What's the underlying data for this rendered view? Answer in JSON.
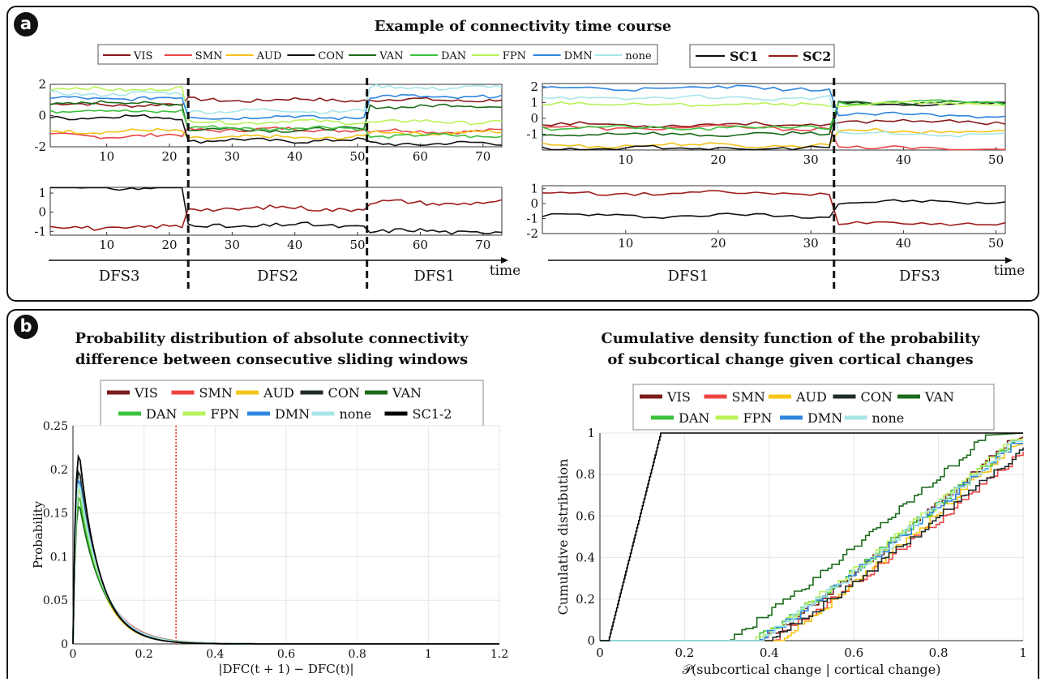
{
  "panel_a": {
    "badge": "a",
    "title": "Example of connectivity time course",
    "legend_networks": [
      {
        "label": "VIS",
        "color": "#8b1a1a"
      },
      {
        "label": "SMN",
        "color": "#e8474b"
      },
      {
        "label": "AUD",
        "color": "#f2c31b"
      },
      {
        "label": "CON",
        "color": "#111111"
      },
      {
        "label": "VAN",
        "color": "#1b6b1b"
      },
      {
        "label": "DAN",
        "color": "#3cc13c"
      },
      {
        "label": "FPN",
        "color": "#b9f25a"
      },
      {
        "label": "DMN",
        "color": "#2f86e0"
      },
      {
        "label": "none",
        "color": "#a8e6e9"
      }
    ],
    "legend_sc": [
      {
        "label": "SC1",
        "color": "#111111"
      },
      {
        "label": "SC2",
        "color": "#a01c1c"
      }
    ],
    "time_label": "time",
    "left_states": [
      "DFS3",
      "DFS2",
      "DFS1"
    ],
    "right_states": [
      "DFS1",
      "DFS3"
    ]
  },
  "panel_b": {
    "badge": "b",
    "left_title": "Probability distribution of absolute connectivity\ndifference between consecutive sliding windows",
    "right_title": "Cumulative density function of the probability\nof subcortical change given cortical changes",
    "left_legend": [
      {
        "label": "VIS",
        "color": "#7a1c1c"
      },
      {
        "label": "SMN",
        "color": "#ef4444"
      },
      {
        "label": "AUD",
        "color": "#f5c518"
      },
      {
        "label": "CON",
        "color": "#1f2d2a"
      },
      {
        "label": "VAN",
        "color": "#1b6b1b"
      },
      {
        "label": "DAN",
        "color": "#3cc13c"
      },
      {
        "label": "FPN",
        "color": "#b9f25a"
      },
      {
        "label": "DMN",
        "color": "#2f86e0"
      },
      {
        "label": "none",
        "color": "#a8e6e9"
      },
      {
        "label": "SC1-2",
        "color": "#000000"
      }
    ],
    "right_legend": [
      {
        "label": "VIS",
        "color": "#7a1c1c"
      },
      {
        "label": "SMN",
        "color": "#ef4444"
      },
      {
        "label": "AUD",
        "color": "#f5c518"
      },
      {
        "label": "CON",
        "color": "#1f2d2a"
      },
      {
        "label": "VAN",
        "color": "#1b6b1b"
      },
      {
        "label": "DAN",
        "color": "#3cc13c"
      },
      {
        "label": "FPN",
        "color": "#b9f25a"
      },
      {
        "label": "DMN",
        "color": "#2f86e0"
      },
      {
        "label": "none",
        "color": "#a8e6e9"
      }
    ]
  },
  "chart_data": [
    {
      "id": "a-left-top",
      "type": "line",
      "xlim": [
        1,
        73
      ],
      "ylim": [
        -2,
        2
      ],
      "xticks": [
        10,
        20,
        30,
        40,
        50,
        60,
        70
      ],
      "yticks": [
        -2,
        0,
        2
      ],
      "tick_labels_y": [
        "-2",
        "0",
        "2"
      ],
      "boundaries": [
        23,
        51.5
      ],
      "segments": [
        1,
        23,
        51.5,
        73
      ],
      "series": [
        {
          "name": "VIS",
          "color": "#8b1a1a",
          "levels": [
            0.7,
            1.0,
            1.0
          ]
        },
        {
          "name": "SMN",
          "color": "#e8474b",
          "levels": [
            -1.3,
            -0.9,
            -1.0
          ]
        },
        {
          "name": "AUD",
          "color": "#f2c31b",
          "levels": [
            -1.0,
            -1.4,
            -1.1
          ]
        },
        {
          "name": "CON",
          "color": "#111111",
          "levels": [
            -0.1,
            -1.6,
            -1.8
          ]
        },
        {
          "name": "VAN",
          "color": "#1b6b1b",
          "levels": [
            0.8,
            -0.9,
            0.6
          ]
        },
        {
          "name": "DAN",
          "color": "#3cc13c",
          "levels": [
            0.3,
            -0.8,
            -1.3
          ]
        },
        {
          "name": "FPN",
          "color": "#b9f25a",
          "levels": [
            1.7,
            -0.4,
            -0.4
          ]
        },
        {
          "name": "DMN",
          "color": "#2f86e0",
          "levels": [
            1.1,
            -0.1,
            1.2
          ]
        },
        {
          "name": "none",
          "color": "#a8e6e9",
          "levels": [
            1.4,
            0.3,
            1.8
          ]
        }
      ]
    },
    {
      "id": "a-left-bottom",
      "type": "line",
      "xlim": [
        1,
        73
      ],
      "ylim": [
        -1.2,
        1.3
      ],
      "xticks": [
        10,
        20,
        30,
        40,
        50,
        60,
        70
      ],
      "yticks": [
        -1,
        0,
        1
      ],
      "tick_labels_y": [
        "-1",
        "0",
        "1"
      ],
      "boundaries": [
        23,
        51.5
      ],
      "segments": [
        1,
        23,
        51.5,
        73
      ],
      "series": [
        {
          "name": "SC1",
          "color": "#111111",
          "levels": [
            1.3,
            -0.7,
            -1.0
          ]
        },
        {
          "name": "SC2",
          "color": "#a01c1c",
          "levels": [
            -0.8,
            0.2,
            0.5
          ]
        }
      ]
    },
    {
      "id": "a-right-top",
      "type": "line",
      "xlim": [
        1,
        51
      ],
      "ylim": [
        -2,
        2.2
      ],
      "xticks": [
        10,
        20,
        30,
        40,
        50
      ],
      "yticks": [
        -1,
        0,
        1,
        2
      ],
      "tick_labels_y": [
        "-1",
        "0",
        "1",
        "2"
      ],
      "boundaries": [
        32.5
      ],
      "segments": [
        1,
        32.5,
        51
      ],
      "series": [
        {
          "name": "VIS",
          "color": "#8b1a1a",
          "levels": [
            -0.4,
            -0.2
          ]
        },
        {
          "name": "SMN",
          "color": "#e8474b",
          "levels": [
            -0.6,
            -1.9
          ]
        },
        {
          "name": "AUD",
          "color": "#f2c31b",
          "levels": [
            -1.7,
            -0.8
          ]
        },
        {
          "name": "CON",
          "color": "#111111",
          "levels": [
            -1.9,
            0.9
          ]
        },
        {
          "name": "VAN",
          "color": "#1b6b1b",
          "levels": [
            -1.0,
            1.0
          ]
        },
        {
          "name": "DAN",
          "color": "#3cc13c",
          "levels": [
            -0.6,
            1.0
          ]
        },
        {
          "name": "FPN",
          "color": "#b9f25a",
          "levels": [
            0.9,
            0.9
          ]
        },
        {
          "name": "DMN",
          "color": "#2f86e0",
          "levels": [
            1.9,
            0.2
          ]
        },
        {
          "name": "none",
          "color": "#a8e6e9",
          "levels": [
            1.3,
            -1.0
          ]
        }
      ]
    },
    {
      "id": "a-right-bottom",
      "type": "line",
      "xlim": [
        1,
        51
      ],
      "ylim": [
        -2,
        1.2
      ],
      "xticks": [
        10,
        20,
        30,
        40,
        50
      ],
      "yticks": [
        -2,
        -1,
        0,
        1
      ],
      "tick_labels_y": [
        "-2",
        "-1",
        "0",
        "1"
      ],
      "boundaries": [
        32.5
      ],
      "segments": [
        1,
        32.5,
        51
      ],
      "series": [
        {
          "name": "SC1",
          "color": "#111111",
          "levels": [
            -0.8,
            0.1
          ]
        },
        {
          "name": "SC2",
          "color": "#a01c1c",
          "levels": [
            0.7,
            -1.3
          ]
        }
      ]
    },
    {
      "id": "b-left",
      "type": "line",
      "xlabel": "|DFC(t + 1) − DFC(t)|",
      "ylabel": "Probability",
      "xlim": [
        0,
        1.2
      ],
      "ylim": [
        0,
        0.25
      ],
      "xticks": [
        0,
        0.2,
        0.4,
        0.6,
        0.8,
        1,
        1.2
      ],
      "xtick_labels": [
        "0",
        "0.2",
        "0.4",
        "0.6",
        "0.8",
        "1",
        "1.2"
      ],
      "yticks": [
        0,
        0.05,
        0.1,
        0.15,
        0.2,
        0.25
      ],
      "ytick_labels": [
        "0",
        "0.05",
        "0.1",
        "0.15",
        "0.2",
        "0.25"
      ],
      "threshold_x": 0.29,
      "threshold_color": "#e0241b",
      "series": [
        {
          "name": "VIS",
          "color": "#7a1c1c",
          "peak": 0.18,
          "decay": 0.065
        },
        {
          "name": "SMN",
          "color": "#ef4444",
          "peak": 0.17,
          "decay": 0.07
        },
        {
          "name": "AUD",
          "color": "#f5c518",
          "peak": 0.19,
          "decay": 0.06
        },
        {
          "name": "CON",
          "color": "#1f2d2a",
          "peak": 0.2,
          "decay": 0.06
        },
        {
          "name": "VAN",
          "color": "#1b6b1b",
          "peak": 0.16,
          "decay": 0.07
        },
        {
          "name": "DAN",
          "color": "#3cc13c",
          "peak": 0.17,
          "decay": 0.068
        },
        {
          "name": "FPN",
          "color": "#b9f25a",
          "peak": 0.18,
          "decay": 0.066
        },
        {
          "name": "DMN",
          "color": "#2f86e0",
          "peak": 0.19,
          "decay": 0.064
        },
        {
          "name": "none",
          "color": "#a8e6e9",
          "peak": 0.185,
          "decay": 0.066
        },
        {
          "name": "SC1-2",
          "color": "#000000",
          "peak": 0.218,
          "decay": 0.058
        }
      ]
    },
    {
      "id": "b-right",
      "type": "line",
      "xlabel": "𝒫(subcortical change | cortical change)",
      "ylabel": "Cumulative distribution",
      "xlim": [
        0,
        1
      ],
      "ylim": [
        0,
        1
      ],
      "xticks": [
        0,
        0.2,
        0.4,
        0.6,
        0.8,
        1
      ],
      "xtick_labels": [
        "0",
        "0.2",
        "0.4",
        "0.6",
        "0.8",
        "1"
      ],
      "yticks": [
        0,
        0.2,
        0.4,
        0.6,
        0.8,
        1
      ],
      "ytick_labels": [
        "0",
        "0.2",
        "0.4",
        "0.6",
        "0.8",
        "1"
      ],
      "series": [
        {
          "name": "VIS",
          "color": "#7a1c1c",
          "start": 0.38,
          "end": 0.98,
          "final": 0.98
        },
        {
          "name": "SMN",
          "color": "#ef4444",
          "start": 0.4,
          "end": 1.0,
          "final": 0.91
        },
        {
          "name": "AUD",
          "color": "#f5c518",
          "start": 0.42,
          "end": 0.98,
          "final": 0.95
        },
        {
          "name": "CON",
          "color": "#1f2d2a",
          "start": 0.4,
          "end": 1.0,
          "final": 0.93
        },
        {
          "name": "VAN",
          "color": "#1b6b1b",
          "start": 0.3,
          "end": 0.92,
          "final": 1.0
        },
        {
          "name": "DAN",
          "color": "#3cc13c",
          "start": 0.36,
          "end": 0.98,
          "final": 0.96
        },
        {
          "name": "FPN",
          "color": "#b9f25a",
          "start": 0.36,
          "end": 0.98,
          "final": 0.97
        },
        {
          "name": "DMN",
          "color": "#2f86e0",
          "start": 0.37,
          "end": 0.98,
          "final": 0.95
        },
        {
          "name": "none",
          "color": "#a8e6e9",
          "start": 0.37,
          "end": 0.98,
          "final": 0.96
        },
        {
          "name": "SC1-2",
          "color": "#000000",
          "start": 0.02,
          "end": 0.15,
          "final": 1.0
        }
      ]
    }
  ]
}
